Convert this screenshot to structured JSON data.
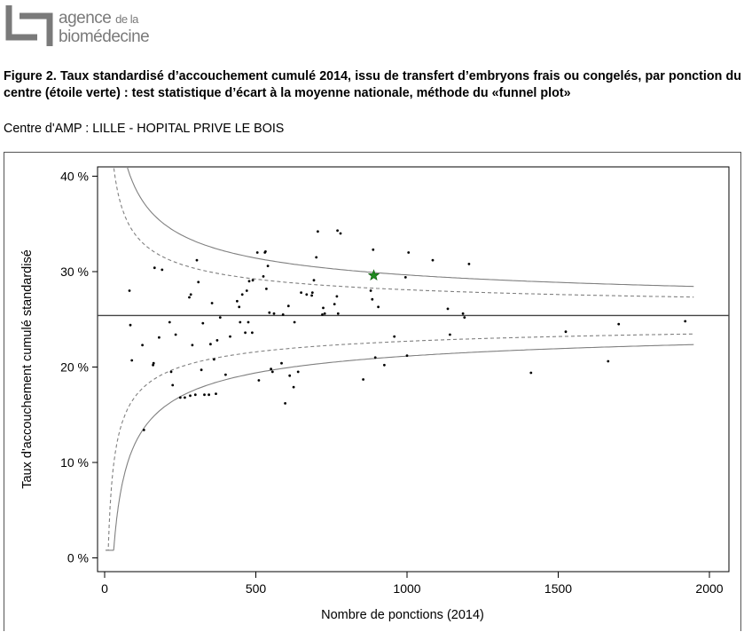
{
  "logo": {
    "line1": "agence",
    "line1_small": "de la",
    "line2": "biomédecine"
  },
  "figure": {
    "caption": "Figure 2. Taux standardisé d’accouchement cumulé 2014, issu de transfert d’embryons frais ou congelés, par ponction du centre (étoile verte) : test statistique d’écart à la moyenne nationale, méthode du «funnel plot»",
    "centre": "Centre d'AMP : LILLE - HOPITAL PRIVE LE BOIS"
  },
  "chart_data": {
    "type": "scatter",
    "title": "",
    "xlabel": "Nombre de ponctions (2014)",
    "ylabel": "Taux d'accouchement cumulé standardisé",
    "xlim": [
      0,
      2000
    ],
    "ylim": [
      0,
      40
    ],
    "x_ticks": [
      "0",
      "500",
      "1000",
      "1500",
      "2000"
    ],
    "y_ticks": [
      "0 %",
      "10 %",
      "20 %",
      "30 %",
      "40 %"
    ],
    "grid": false,
    "national_mean": 25.4,
    "limits": {
      "solid_99": {
        "color": "#808080"
      },
      "dashed_95": {
        "color": "#808080"
      }
    },
    "highlight_center": {
      "label": "étoile verte",
      "x": 890,
      "y": 29.6,
      "color": "#1f8a1f"
    },
    "points": [
      [
        82,
        28.0
      ],
      [
        85,
        24.4
      ],
      [
        90,
        20.7
      ],
      [
        130,
        13.4
      ],
      [
        125,
        22.3
      ],
      [
        160,
        20.2
      ],
      [
        162,
        20.4
      ],
      [
        165,
        30.4
      ],
      [
        180,
        23.1
      ],
      [
        190,
        30.2
      ],
      [
        215,
        24.7
      ],
      [
        220,
        19.5
      ],
      [
        225,
        18.1
      ],
      [
        235,
        23.4
      ],
      [
        250,
        16.8
      ],
      [
        265,
        16.8
      ],
      [
        280,
        27.3
      ],
      [
        283,
        17.0
      ],
      [
        285,
        27.6
      ],
      [
        290,
        22.3
      ],
      [
        300,
        17.1
      ],
      [
        305,
        31.2
      ],
      [
        310,
        28.9
      ],
      [
        320,
        19.7
      ],
      [
        325,
        24.6
      ],
      [
        330,
        17.1
      ],
      [
        345,
        17.1
      ],
      [
        350,
        22.4
      ],
      [
        355,
        26.7
      ],
      [
        362,
        20.8
      ],
      [
        368,
        17.2
      ],
      [
        372,
        22.8
      ],
      [
        382,
        25.2
      ],
      [
        400,
        19.2
      ],
      [
        415,
        23.2
      ],
      [
        438,
        26.9
      ],
      [
        445,
        26.3
      ],
      [
        448,
        24.7
      ],
      [
        455,
        27.6
      ],
      [
        465,
        23.6
      ],
      [
        470,
        28.0
      ],
      [
        475,
        24.7
      ],
      [
        478,
        29.0
      ],
      [
        488,
        23.6
      ],
      [
        490,
        29.1
      ],
      [
        505,
        32.0
      ],
      [
        510,
        18.6
      ],
      [
        525,
        29.5
      ],
      [
        530,
        32.0
      ],
      [
        532,
        32.1
      ],
      [
        535,
        28.2
      ],
      [
        540,
        30.6
      ],
      [
        545,
        25.7
      ],
      [
        550,
        19.8
      ],
      [
        555,
        19.5
      ],
      [
        560,
        25.6
      ],
      [
        585,
        20.4
      ],
      [
        590,
        25.5
      ],
      [
        597,
        16.2
      ],
      [
        608,
        26.4
      ],
      [
        612,
        19.1
      ],
      [
        625,
        17.9
      ],
      [
        628,
        24.7
      ],
      [
        640,
        19.5
      ],
      [
        650,
        27.8
      ],
      [
        668,
        27.6
      ],
      [
        685,
        27.5
      ],
      [
        687,
        27.8
      ],
      [
        692,
        29.1
      ],
      [
        700,
        31.5
      ],
      [
        705,
        34.2
      ],
      [
        720,
        25.5
      ],
      [
        723,
        26.2
      ],
      [
        728,
        25.6
      ],
      [
        760,
        26.6
      ],
      [
        768,
        27.4
      ],
      [
        770,
        34.3
      ],
      [
        772,
        25.6
      ],
      [
        780,
        34.0
      ],
      [
        855,
        18.7
      ],
      [
        880,
        28.0
      ],
      [
        885,
        27.1
      ],
      [
        888,
        32.3
      ],
      [
        895,
        21.0
      ],
      [
        905,
        26.3
      ],
      [
        925,
        20.2
      ],
      [
        958,
        23.2
      ],
      [
        995,
        29.4
      ],
      [
        1000,
        21.2
      ],
      [
        1005,
        32.0
      ],
      [
        1085,
        31.2
      ],
      [
        1135,
        26.1
      ],
      [
        1142,
        23.4
      ],
      [
        1185,
        25.6
      ],
      [
        1190,
        25.2
      ],
      [
        1205,
        30.8
      ],
      [
        1410,
        19.4
      ],
      [
        1525,
        23.7
      ],
      [
        1665,
        20.6
      ],
      [
        1700,
        24.5
      ],
      [
        1920,
        24.8
      ]
    ]
  }
}
